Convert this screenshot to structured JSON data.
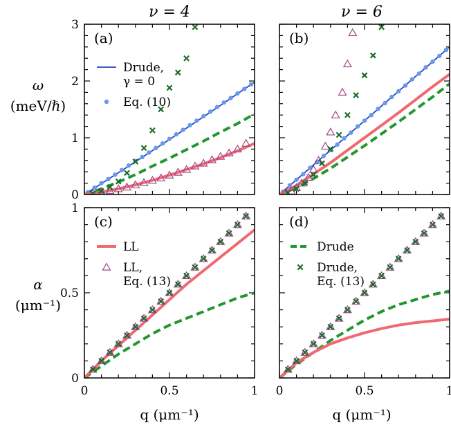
{
  "chart_data": {
    "type": "line",
    "column_titles": [
      "ν = 4",
      "ν = 6"
    ],
    "ylabels": {
      "omega": {
        "symbol": "ω",
        "unit": "(meV/ℏ)"
      },
      "alpha": {
        "symbol": "α",
        "unit": "(μm⁻¹)"
      }
    },
    "xlabel": "q (μm⁻¹)",
    "x_ticks": [
      "0",
      "0.5",
      "1"
    ],
    "colors": {
      "LL": "#f06870",
      "Drude": "#23962f",
      "eq10": "#6699ee",
      "drudeNoGamma": "#2244bb",
      "llEq13": "#9a4a8a",
      "drudeEq13": "#1c6b2a"
    },
    "panels": [
      {
        "tag": "(a)",
        "row": 0,
        "col": 0,
        "xlim": [
          0,
          1
        ],
        "ylim": [
          0,
          3
        ],
        "yticks": [
          "0",
          "1",
          "2",
          "3"
        ],
        "series": [
          {
            "name": "Drude, γ = 0",
            "style": "line",
            "x": [
              0,
              0.25,
              0.5,
              0.75,
              1.0
            ],
            "y": [
              0,
              0.48,
              0.97,
              1.47,
              1.98
            ]
          },
          {
            "name": "Eq. (10)",
            "style": "dots",
            "x": [
              0.02,
              0.06,
              0.1,
              0.14,
              0.18,
              0.22,
              0.26,
              0.3,
              0.34,
              0.38,
              0.42,
              0.46,
              0.5,
              0.54,
              0.58,
              0.62,
              0.66,
              0.7,
              0.74,
              0.78,
              0.82,
              0.86,
              0.9,
              0.94,
              0.98
            ],
            "y": [
              0.04,
              0.12,
              0.2,
              0.27,
              0.35,
              0.43,
              0.51,
              0.59,
              0.66,
              0.74,
              0.82,
              0.9,
              0.98,
              1.06,
              1.14,
              1.22,
              1.3,
              1.38,
              1.46,
              1.54,
              1.62,
              1.7,
              1.78,
              1.86,
              1.94
            ]
          },
          {
            "name": "Drude",
            "style": "dashed",
            "x": [
              0,
              0.1,
              0.2,
              0.3,
              0.4,
              0.5,
              0.6,
              0.7,
              0.8,
              0.9,
              1.0
            ],
            "y": [
              0,
              0.1,
              0.22,
              0.35,
              0.5,
              0.64,
              0.79,
              0.94,
              1.1,
              1.25,
              1.42
            ]
          },
          {
            "name": "LL",
            "style": "thick",
            "x": [
              0,
              0.1,
              0.2,
              0.3,
              0.4,
              0.5,
              0.6,
              0.7,
              0.8,
              0.9,
              1.0
            ],
            "y": [
              0,
              0.04,
              0.1,
              0.17,
              0.25,
              0.34,
              0.44,
              0.54,
              0.65,
              0.77,
              0.9
            ]
          },
          {
            "name": "LL, Eq. (13)",
            "style": "triangle",
            "x": [
              0.05,
              0.1,
              0.15,
              0.2,
              0.25,
              0.3,
              0.35,
              0.4,
              0.45,
              0.5,
              0.55,
              0.6,
              0.65,
              0.7,
              0.75,
              0.8,
              0.85,
              0.9,
              0.95
            ],
            "y": [
              0.02,
              0.05,
              0.07,
              0.1,
              0.13,
              0.17,
              0.21,
              0.25,
              0.29,
              0.34,
              0.39,
              0.44,
              0.5,
              0.55,
              0.61,
              0.67,
              0.73,
              0.8,
              0.9
            ]
          },
          {
            "name": "Drude, Eq. (13)",
            "style": "cross",
            "x": [
              0.05,
              0.1,
              0.15,
              0.2,
              0.25,
              0.3,
              0.35,
              0.4,
              0.45,
              0.5,
              0.55,
              0.6,
              0.65
            ],
            "y": [
              0.02,
              0.06,
              0.13,
              0.23,
              0.38,
              0.58,
              0.82,
              1.13,
              1.5,
              1.88,
              2.15,
              2.4,
              2.95
            ]
          }
        ]
      },
      {
        "tag": "(b)",
        "row": 0,
        "col": 1,
        "xlim": [
          0,
          1
        ],
        "ylim": [
          0,
          3
        ],
        "yticks": [],
        "series": [
          {
            "name": "Drude, γ = 0",
            "style": "line",
            "x": [
              0,
              0.25,
              0.5,
              0.75,
              1.0
            ],
            "y": [
              0,
              0.65,
              1.3,
              1.95,
              2.6
            ]
          },
          {
            "name": "Eq. (10)",
            "style": "dots",
            "x": [
              0.02,
              0.06,
              0.1,
              0.14,
              0.18,
              0.22,
              0.26,
              0.3,
              0.34,
              0.38,
              0.42,
              0.46,
              0.5,
              0.54,
              0.58,
              0.62,
              0.66,
              0.7,
              0.74,
              0.78,
              0.82,
              0.86,
              0.9,
              0.94,
              0.98
            ],
            "y": [
              0.05,
              0.16,
              0.26,
              0.36,
              0.47,
              0.57,
              0.68,
              0.78,
              0.88,
              0.99,
              1.09,
              1.2,
              1.3,
              1.4,
              1.51,
              1.61,
              1.72,
              1.82,
              1.92,
              2.03,
              2.13,
              2.24,
              2.34,
              2.44,
              2.55
            ]
          },
          {
            "name": "Drude",
            "style": "dashed",
            "x": [
              0,
              0.1,
              0.2,
              0.3,
              0.4,
              0.5,
              0.6,
              0.7,
              0.8,
              0.9,
              1.0
            ],
            "y": [
              0,
              0.12,
              0.28,
              0.46,
              0.66,
              0.86,
              1.07,
              1.28,
              1.5,
              1.72,
              1.95
            ]
          },
          {
            "name": "LL",
            "style": "thick",
            "x": [
              0,
              0.1,
              0.2,
              0.3,
              0.4,
              0.5,
              0.6,
              0.7,
              0.8,
              0.9,
              1.0
            ],
            "y": [
              0,
              0.16,
              0.36,
              0.56,
              0.78,
              1.0,
              1.22,
              1.44,
              1.67,
              1.9,
              2.12
            ]
          },
          {
            "name": "LL, Eq. (13)",
            "style": "triangle",
            "x": [
              0.03,
              0.07,
              0.1,
              0.13,
              0.17,
              0.2,
              0.23,
              0.27,
              0.3,
              0.33,
              0.37,
              0.4,
              0.43
            ],
            "y": [
              0.02,
              0.06,
              0.12,
              0.2,
              0.3,
              0.44,
              0.6,
              0.85,
              1.1,
              1.4,
              1.8,
              2.3,
              2.85
            ]
          },
          {
            "name": "Drude, Eq. (13)",
            "style": "cross",
            "x": [
              0.05,
              0.1,
              0.15,
              0.2,
              0.25,
              0.3,
              0.35,
              0.4,
              0.45,
              0.5,
              0.55,
              0.6
            ],
            "y": [
              0.03,
              0.1,
              0.2,
              0.35,
              0.55,
              0.8,
              1.05,
              1.4,
              1.75,
              2.1,
              2.45,
              2.95
            ]
          }
        ]
      },
      {
        "tag": "(c)",
        "row": 1,
        "col": 0,
        "xlim": [
          0,
          1
        ],
        "ylim": [
          0,
          1
        ],
        "yticks": [
          "0",
          "0.5",
          "1"
        ],
        "series": [
          {
            "name": "Drude",
            "style": "dashed",
            "x": [
              0,
              0.1,
              0.2,
              0.3,
              0.4,
              0.5,
              0.6,
              0.7,
              0.8,
              0.9,
              1.0
            ],
            "y": [
              0,
              0.07,
              0.14,
              0.2,
              0.26,
              0.31,
              0.35,
              0.39,
              0.43,
              0.47,
              0.5
            ]
          },
          {
            "name": "LL",
            "style": "thick",
            "x": [
              0,
              0.1,
              0.2,
              0.3,
              0.4,
              0.5,
              0.6,
              0.7,
              0.8,
              0.9,
              1.0
            ],
            "y": [
              0,
              0.1,
              0.19,
              0.28,
              0.37,
              0.46,
              0.55,
              0.63,
              0.71,
              0.79,
              0.87
            ]
          },
          {
            "name": "LL, Eq. (13)",
            "style": "triangle",
            "x": [
              0.05,
              0.1,
              0.15,
              0.2,
              0.25,
              0.3,
              0.35,
              0.4,
              0.45,
              0.5,
              0.55,
              0.6,
              0.65,
              0.7,
              0.75,
              0.8,
              0.85,
              0.9,
              0.95
            ],
            "y": [
              0.05,
              0.1,
              0.15,
              0.2,
              0.25,
              0.3,
              0.35,
              0.4,
              0.45,
              0.5,
              0.55,
              0.6,
              0.65,
              0.7,
              0.75,
              0.8,
              0.85,
              0.9,
              0.95
            ]
          },
          {
            "name": "Drude, Eq. (13)",
            "style": "cross",
            "x": [
              0.05,
              0.1,
              0.15,
              0.2,
              0.25,
              0.3,
              0.35,
              0.4,
              0.45,
              0.5,
              0.55,
              0.6,
              0.65,
              0.7,
              0.75,
              0.8,
              0.85,
              0.9,
              0.95
            ],
            "y": [
              0.05,
              0.1,
              0.15,
              0.2,
              0.25,
              0.3,
              0.35,
              0.4,
              0.45,
              0.5,
              0.55,
              0.6,
              0.65,
              0.7,
              0.75,
              0.8,
              0.85,
              0.9,
              0.95
            ]
          }
        ]
      },
      {
        "tag": "(d)",
        "row": 1,
        "col": 1,
        "xlim": [
          0,
          1
        ],
        "ylim": [
          0,
          1
        ],
        "yticks": [],
        "series": [
          {
            "name": "Drude",
            "style": "dashed",
            "x": [
              0,
              0.1,
              0.2,
              0.3,
              0.4,
              0.5,
              0.6,
              0.7,
              0.8,
              0.9,
              1.0
            ],
            "y": [
              0,
              0.08,
              0.15,
              0.22,
              0.28,
              0.34,
              0.39,
              0.43,
              0.46,
              0.49,
              0.51
            ]
          },
          {
            "name": "LL",
            "style": "thick",
            "x": [
              0,
              0.1,
              0.2,
              0.3,
              0.4,
              0.5,
              0.6,
              0.7,
              0.8,
              0.9,
              1.0
            ],
            "y": [
              0,
              0.09,
              0.15,
              0.2,
              0.235,
              0.265,
              0.29,
              0.31,
              0.325,
              0.335,
              0.345
            ]
          },
          {
            "name": "LL, Eq. (13)",
            "style": "triangle",
            "x": [
              0.05,
              0.1,
              0.15,
              0.2,
              0.25,
              0.3,
              0.35,
              0.4,
              0.45,
              0.5,
              0.55,
              0.6,
              0.65,
              0.7,
              0.75,
              0.8,
              0.85,
              0.9,
              0.95
            ],
            "y": [
              0.05,
              0.1,
              0.15,
              0.2,
              0.25,
              0.3,
              0.35,
              0.4,
              0.45,
              0.5,
              0.55,
              0.6,
              0.65,
              0.7,
              0.75,
              0.8,
              0.85,
              0.9,
              0.95
            ]
          },
          {
            "name": "Drude, Eq. (13)",
            "style": "cross",
            "x": [
              0.05,
              0.1,
              0.15,
              0.2,
              0.25,
              0.3,
              0.35,
              0.4,
              0.45,
              0.5,
              0.55,
              0.6,
              0.65,
              0.7,
              0.75,
              0.8,
              0.85,
              0.9,
              0.95
            ],
            "y": [
              0.05,
              0.1,
              0.15,
              0.2,
              0.25,
              0.3,
              0.35,
              0.4,
              0.45,
              0.5,
              0.55,
              0.6,
              0.65,
              0.7,
              0.75,
              0.8,
              0.85,
              0.9,
              0.95
            ]
          }
        ]
      }
    ],
    "legends": {
      "a": [
        {
          "style": "line",
          "lines": [
            "Drude,",
            "γ = 0"
          ]
        },
        {
          "style": "dots",
          "lines": [
            "Eq. (10)"
          ]
        }
      ],
      "c": [
        {
          "style": "thick",
          "lines": [
            "LL"
          ]
        },
        {
          "style": "triangle",
          "lines": [
            "LL,",
            "Eq. (13)"
          ]
        }
      ],
      "d": [
        {
          "style": "dashed",
          "lines": [
            "Drude"
          ]
        },
        {
          "style": "cross",
          "lines": [
            "Drude,",
            "Eq. (13)"
          ]
        }
      ]
    }
  }
}
